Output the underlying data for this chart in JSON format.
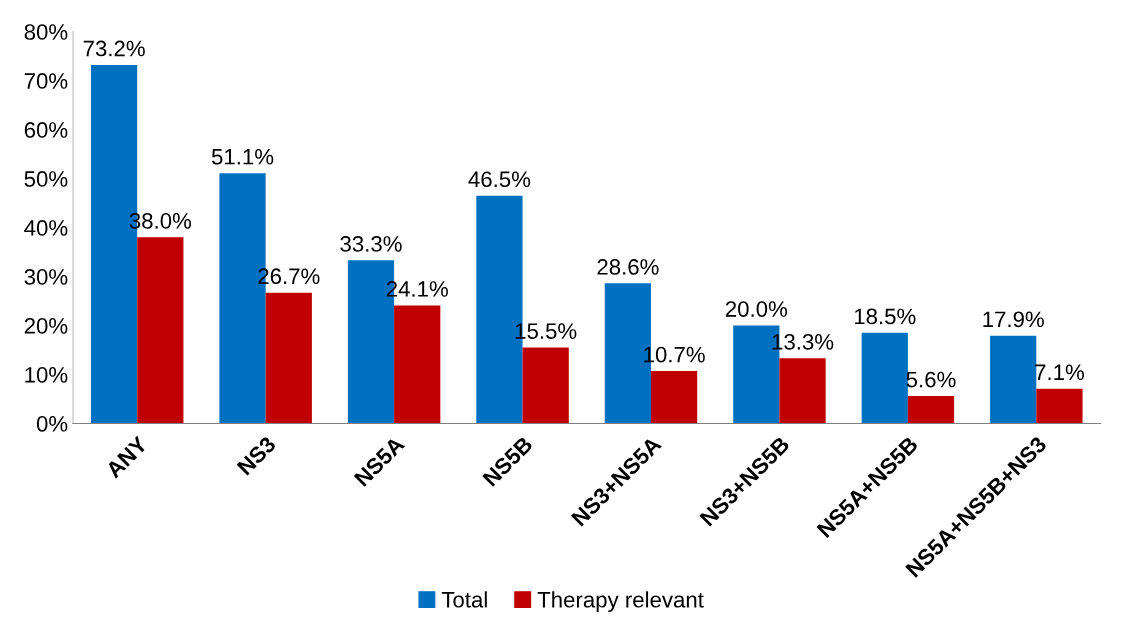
{
  "chart_data": {
    "type": "bar",
    "categories": [
      "ANY",
      "NS3",
      "NS5A",
      "NS5B",
      "NS3+NS5A",
      "NS3+NS5B",
      "NS5A+NS5B",
      "NS5A+NS5B+NS3"
    ],
    "series": [
      {
        "name": "Total",
        "color": "#0070c0",
        "values": [
          73.2,
          51.1,
          33.3,
          46.5,
          28.6,
          20.0,
          18.5,
          17.9
        ],
        "value_labels": [
          "73.2%",
          "51.1%",
          "33.3%",
          "46.5%",
          "28.6%",
          "20.0%",
          "18.5%",
          "17.9%"
        ]
      },
      {
        "name": "Therapy relevant",
        "color": "#c00000",
        "values": [
          38.0,
          26.7,
          24.1,
          15.5,
          10.7,
          13.3,
          5.6,
          7.1
        ],
        "value_labels": [
          "38.0%",
          "26.7%",
          "24.1%",
          "15.5%",
          "10.7%",
          "13.3%",
          "5.6%",
          "7.1%"
        ]
      }
    ],
    "ylim": [
      0,
      80
    ],
    "yticks": [
      {
        "value": 0,
        "label": "0%"
      },
      {
        "value": 10,
        "label": "10%"
      },
      {
        "value": 20,
        "label": "20%"
      },
      {
        "value": 30,
        "label": "30%"
      },
      {
        "value": 40,
        "label": "40%"
      },
      {
        "value": 50,
        "label": "50%"
      },
      {
        "value": 60,
        "label": "60%"
      },
      {
        "value": 70,
        "label": "70%"
      },
      {
        "value": 80,
        "label": "80%"
      }
    ],
    "grid": false,
    "legend": "bottom"
  }
}
